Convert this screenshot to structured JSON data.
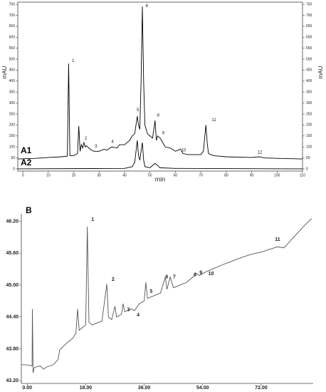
{
  "chart_data": [
    {
      "type": "line",
      "xlabel": "min",
      "ylabel": "mAU",
      "y2label": "mAU",
      "xlim": [
        -2,
        110
      ],
      "xticks": [
        0,
        10,
        20,
        30,
        40,
        50,
        60,
        70,
        80,
        90,
        100,
        110
      ],
      "ylim": [
        -10,
        760
      ],
      "yticks": [
        0,
        50,
        100,
        150,
        200,
        250,
        300,
        350,
        400,
        450,
        500,
        550,
        600,
        650,
        700,
        750
      ],
      "y2lim": [
        -10,
        760
      ],
      "y2ticks": [
        0,
        50,
        100,
        150,
        200,
        250,
        300,
        350,
        400,
        450,
        500,
        550,
        600,
        650,
        700,
        750
      ],
      "frame": true,
      "series": [
        {
          "name": "A1",
          "color": "#000000",
          "x": [
            -2,
            5,
            10,
            15,
            17.5,
            18,
            18.5,
            20,
            21.5,
            22,
            22.5,
            23,
            23.5,
            24,
            24.5,
            25,
            26,
            27,
            28,
            30,
            32,
            33,
            35,
            37,
            38,
            40,
            42,
            43,
            44,
            45,
            45.5,
            46,
            46.5,
            47,
            47.5,
            48,
            49,
            50,
            51,
            52,
            52.5,
            53,
            54,
            55,
            56,
            58,
            60,
            62,
            63,
            65,
            68,
            70,
            71,
            72,
            72.5,
            73,
            75,
            80,
            90,
            93,
            95,
            100,
            110
          ],
          "values": [
            45,
            48,
            52,
            55,
            58,
            480,
            60,
            60,
            70,
            195,
            80,
            110,
            95,
            120,
            100,
            105,
            95,
            85,
            80,
            80,
            90,
            85,
            100,
            95,
            110,
            110,
            130,
            150,
            160,
            240,
            200,
            180,
            400,
            740,
            400,
            200,
            160,
            150,
            140,
            220,
            130,
            150,
            140,
            120,
            100,
            95,
            80,
            90,
            70,
            65,
            65,
            65,
            80,
            200,
            120,
            70,
            60,
            55,
            52,
            55,
            50,
            48,
            45
          ]
        },
        {
          "name": "A2",
          "color": "#000000",
          "x": [
            -2,
            40,
            43,
            44,
            45,
            45.5,
            46,
            47,
            47.5,
            48,
            50,
            52,
            53,
            54,
            60,
            110
          ],
          "values": [
            0,
            2,
            10,
            30,
            130,
            60,
            40,
            120,
            40,
            10,
            5,
            25,
            15,
            5,
            2,
            0
          ]
        }
      ],
      "annotations": [
        {
          "text": "1",
          "x": 19,
          "y": 480
        },
        {
          "text": "2",
          "x": 24,
          "y": 125
        },
        {
          "text": "3",
          "x": 28,
          "y": 90
        },
        {
          "text": "4",
          "x": 34.5,
          "y": 110
        },
        {
          "text": "5",
          "x": 44.5,
          "y": 255
        },
        {
          "text": "6",
          "x": 48,
          "y": 730
        },
        {
          "text": "8",
          "x": 52.5,
          "y": 230
        },
        {
          "text": "9",
          "x": 54.5,
          "y": 150
        },
        {
          "text": "10",
          "x": 62,
          "y": 72
        },
        {
          "text": "11",
          "x": 74,
          "y": 210
        },
        {
          "text": "12",
          "x": 92,
          "y": 62
        }
      ]
    },
    {
      "type": "line",
      "panel_label": "B",
      "xlim": [
        -1.8,
        88
      ],
      "xticks": [
        {
          "value": 0,
          "label": "0.00"
        },
        {
          "value": 18,
          "label": "18.00"
        },
        {
          "value": 36,
          "label": "36.00"
        },
        {
          "value": 54,
          "label": "54.00"
        },
        {
          "value": 72,
          "label": "72.00"
        }
      ],
      "ylim": [
        43.15,
        46.34
      ],
      "yticks": [
        {
          "value": 43.2,
          "label": "43.20"
        },
        {
          "value": 43.8,
          "label": "43.80"
        },
        {
          "value": 44.4,
          "label": "44.40"
        },
        {
          "value": 45,
          "label": "45.00"
        },
        {
          "value": 45.6,
          "label": "45.60"
        },
        {
          "value": 46.2,
          "label": "46.20"
        }
      ],
      "frame": false,
      "color": "#555555",
      "x": [
        -1.8,
        0,
        1.5,
        1.6,
        1.8,
        2.2,
        4,
        5,
        6,
        8,
        9.5,
        10,
        12,
        14,
        15,
        15.5,
        16,
        17,
        18,
        18.5,
        19,
        20,
        22,
        23,
        24.5,
        25,
        26,
        27,
        27.5,
        29,
        29.5,
        30,
        32,
        33,
        34.5,
        36,
        36.5,
        37,
        39,
        41,
        42.5,
        43,
        44,
        45,
        47,
        49,
        51,
        52,
        53,
        55,
        57,
        60,
        63,
        66,
        69,
        72,
        75,
        77,
        79,
        82,
        85,
        87.5
      ],
      "values": [
        43.5,
        43.5,
        43.48,
        44.55,
        43.35,
        43.45,
        43.48,
        43.42,
        43.46,
        43.5,
        43.6,
        43.78,
        43.9,
        44.0,
        44.1,
        44.55,
        44.15,
        44.2,
        44.25,
        46.1,
        44.3,
        44.25,
        44.3,
        44.32,
        45.02,
        44.4,
        44.35,
        44.6,
        44.4,
        44.45,
        44.65,
        44.5,
        44.55,
        44.52,
        44.65,
        44.7,
        45.05,
        44.75,
        44.8,
        44.85,
        45.15,
        44.92,
        45.15,
        44.95,
        45.0,
        45.05,
        45.15,
        45.22,
        45.18,
        45.25,
        45.3,
        45.38,
        45.45,
        45.52,
        45.58,
        45.62,
        45.68,
        45.72,
        45.7,
        45.9,
        46.1,
        46.25
      ],
      "annotations": [
        {
          "text": "1",
          "x": 19.5,
          "y": 46.18
        },
        {
          "text": "2",
          "x": 25.8,
          "y": 45.05
        },
        {
          "text": "3",
          "x": 30.5,
          "y": 44.48
        },
        {
          "text": "4",
          "x": 33.5,
          "y": 44.38
        },
        {
          "text": "5",
          "x": 37.5,
          "y": 44.82
        },
        {
          "text": "6",
          "x": 42.3,
          "y": 45.1
        },
        {
          "text": "7",
          "x": 44.6,
          "y": 45.1
        },
        {
          "text": "8",
          "x": 51,
          "y": 45.14
        },
        {
          "text": "9",
          "x": 52.8,
          "y": 45.18
        },
        {
          "text": "10",
          "x": 55.5,
          "y": 45.16
        },
        {
          "text": "11",
          "x": 76,
          "y": 45.8
        }
      ]
    }
  ]
}
